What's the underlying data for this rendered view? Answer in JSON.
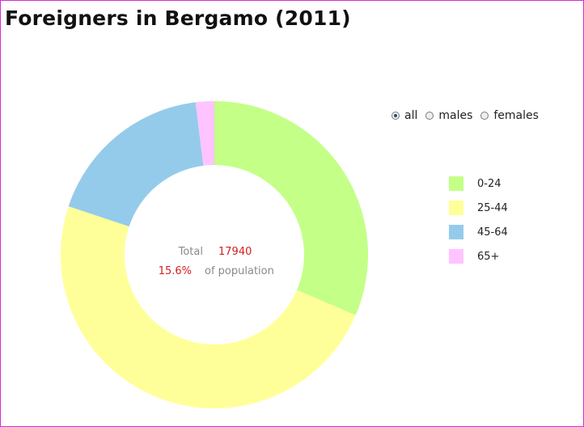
{
  "title": "Foreigners in Bergamo (2011)",
  "filters": [
    {
      "label": "all",
      "checked": true
    },
    {
      "label": "males",
      "checked": false
    },
    {
      "label": "females",
      "checked": false
    }
  ],
  "center": {
    "total_label": "Total",
    "total_value": "17940",
    "percent_value": "15.6%",
    "percent_label": "of population"
  },
  "colors": {
    "text_value": "#d11f1f",
    "text_label": "#8a8a8a"
  },
  "chart_data": {
    "type": "pie",
    "donut": true,
    "categories": [
      "0-24",
      "25-44",
      "45-64",
      "65+"
    ],
    "values": [
      5640,
      8730,
      3220,
      350
    ],
    "colors": [
      "#c4ff87",
      "#ffff99",
      "#95cbea",
      "#ffc4ff"
    ],
    "legend_position": "right",
    "start_angle_deg": 0,
    "direction": "clockwise"
  }
}
